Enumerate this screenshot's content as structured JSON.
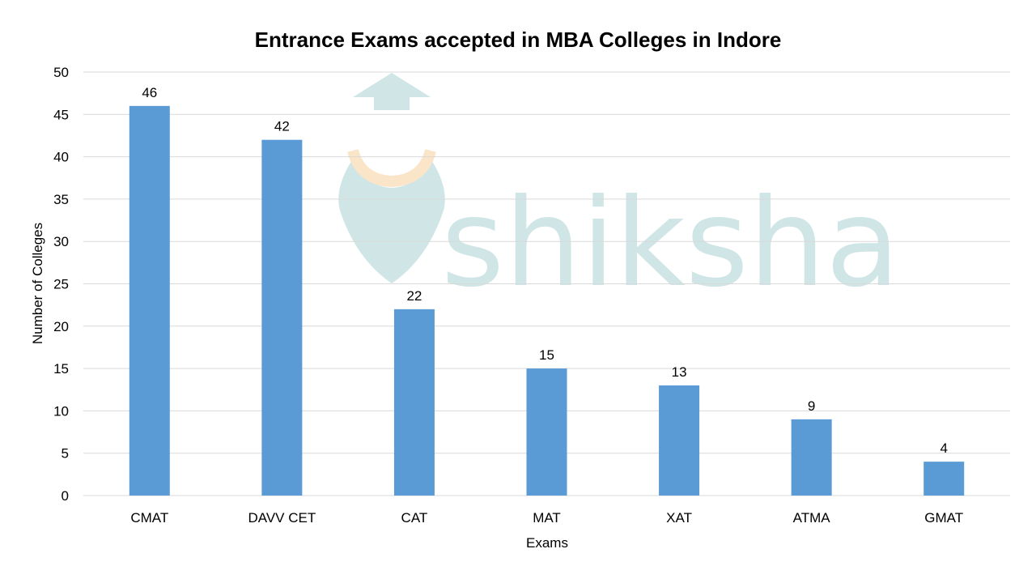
{
  "watermark": {
    "text": "shiksha",
    "color": "#cfe5e6",
    "accent": "#fbe5c8"
  },
  "chart_data": {
    "type": "bar",
    "title": "Entrance Exams accepted in MBA Colleges in Indore",
    "xlabel": "Exams",
    "ylabel": "Number of Colleges",
    "categories": [
      "CMAT",
      "DAVV CET",
      "CAT",
      "MAT",
      "XAT",
      "ATMA",
      "GMAT"
    ],
    "values": [
      46,
      42,
      22,
      15,
      13,
      9,
      4
    ],
    "ylim": [
      0,
      50
    ],
    "yticks": [
      0,
      5,
      10,
      15,
      20,
      25,
      30,
      35,
      40,
      45,
      50
    ],
    "grid": true,
    "legend": "none",
    "bar_color": "#5b9bd5",
    "grid_color": "#d9d9d9"
  }
}
